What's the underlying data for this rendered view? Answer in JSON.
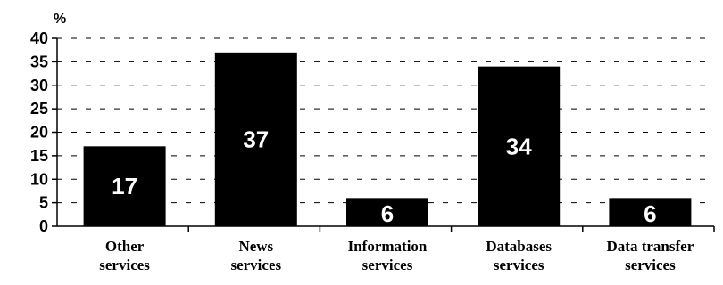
{
  "chart_data": {
    "type": "bar",
    "unit_label": "%",
    "categories": [
      [
        "Other",
        "services"
      ],
      [
        "News",
        "services"
      ],
      [
        "Information",
        "services"
      ],
      [
        "Databases",
        "services"
      ],
      [
        "Data transfer",
        "services"
      ]
    ],
    "values": [
      17,
      37,
      6,
      34,
      6
    ],
    "data_labels": [
      "17",
      "37",
      "6",
      "34",
      "6"
    ],
    "ylim": [
      0,
      40
    ],
    "yticks": [
      0,
      5,
      10,
      15,
      20,
      25,
      30,
      35,
      40
    ],
    "grid": "dashed horizontal",
    "bar_color": "#000000",
    "label_color": "#ffffff"
  }
}
